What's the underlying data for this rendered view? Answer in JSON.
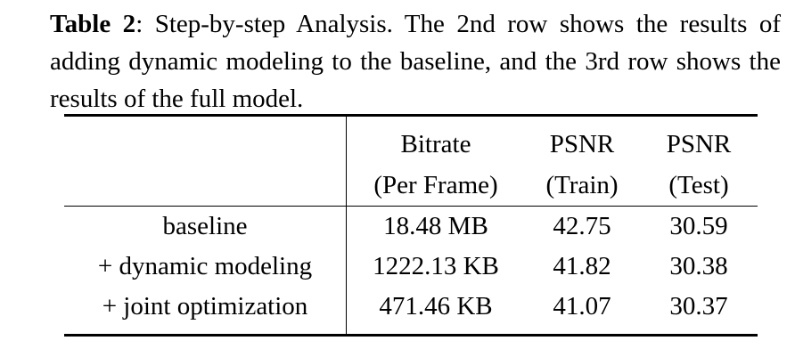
{
  "caption": {
    "label": "Table 2",
    "text": ": Step-by-step Analysis. The 2nd row shows the results of adding dynamic modeling to the baseline, and the 3rd row shows the results of the full model."
  },
  "table": {
    "header_line1": [
      "",
      "Bitrate",
      "PSNR",
      "PSNR"
    ],
    "header_line2": [
      "",
      "(Per Frame)",
      "(Train)",
      "(Test)"
    ],
    "rows": [
      [
        "baseline",
        "18.48 MB",
        "42.75",
        "30.59"
      ],
      [
        "+ dynamic modeling",
        "1222.13 KB",
        "41.82",
        "30.38"
      ],
      [
        "+ joint optimization",
        "471.46 KB",
        "41.07",
        "30.37"
      ]
    ]
  }
}
